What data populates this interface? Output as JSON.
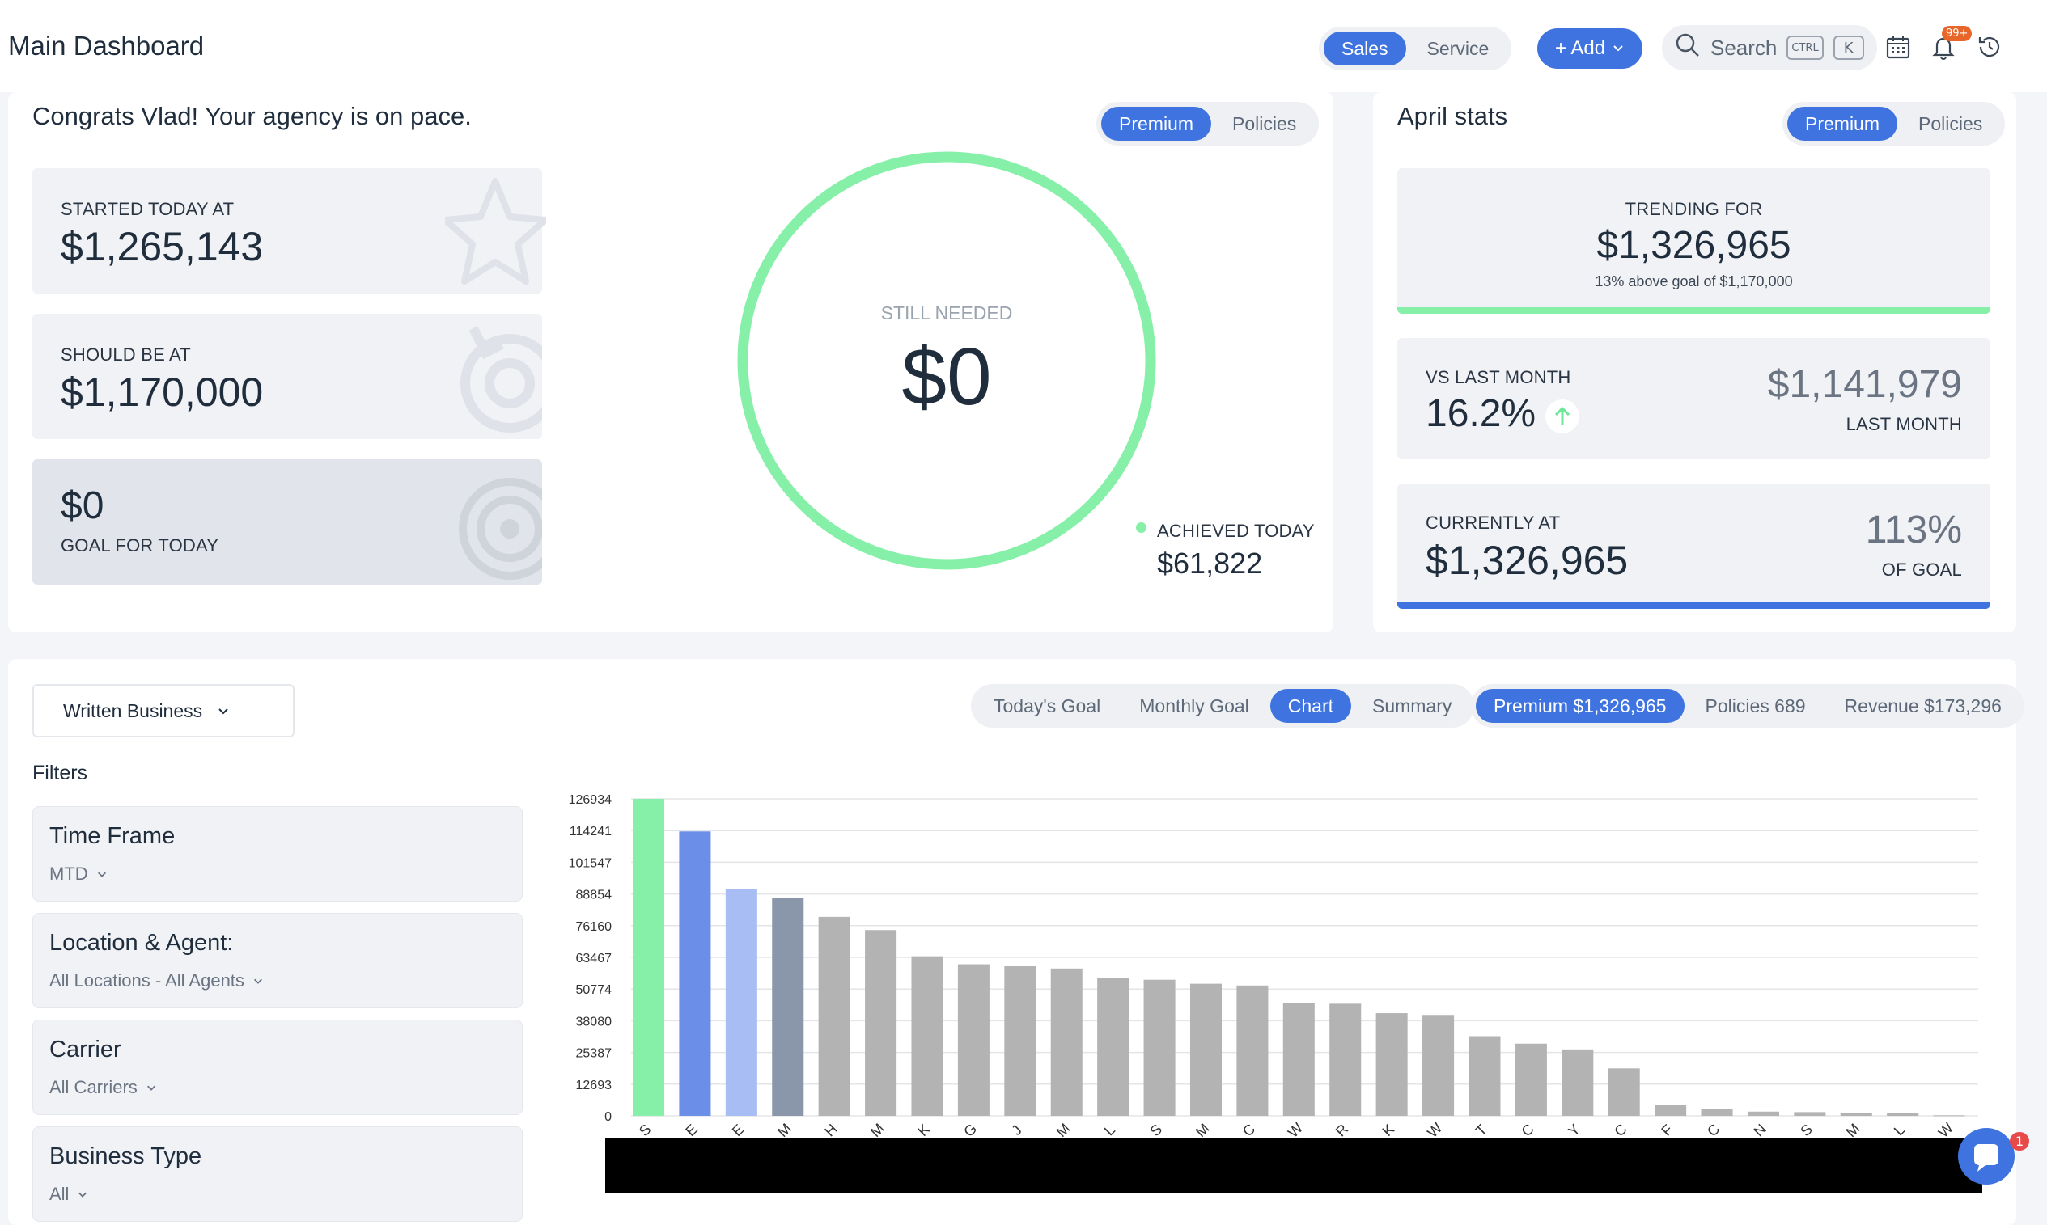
{
  "header": {
    "title": "Main Dashboard",
    "mode_tabs": [
      "Sales",
      "Service"
    ],
    "active_mode": "Sales",
    "add_label": "+ Add",
    "search_label": "Search",
    "kbd_ctrl": "CTRL",
    "kbd_k": "K",
    "notif_count": "99+"
  },
  "pace": {
    "headline": "Congrats Vlad! Your agency is on pace.",
    "toggle": [
      "Premium",
      "Policies"
    ],
    "started_label": "STARTED TODAY AT",
    "started_value": "$1,265,143",
    "should_label": "SHOULD BE AT",
    "should_value": "$1,170,000",
    "goal_value": "$0",
    "goal_label": "GOAL FOR TODAY",
    "still_needed_label": "STILL NEEDED",
    "still_needed_value": "$0",
    "achieved_label": "ACHIEVED TODAY",
    "achieved_value": "$61,822"
  },
  "april": {
    "title": "April stats",
    "toggle": [
      "Premium",
      "Policies"
    ],
    "trending_label": "TRENDING FOR",
    "trending_value": "$1,326,965",
    "trending_note": "13% above goal of $1,170,000",
    "vs_label": "VS LAST MONTH",
    "vs_value": "16.2%",
    "last_month_value": "$1,141,979",
    "last_month_label": "LAST MONTH",
    "current_label": "CURRENTLY AT",
    "current_value": "$1,326,965",
    "pct_value": "113%",
    "pct_label": "OF GOAL"
  },
  "business": {
    "dropdown_label": "Written Business",
    "view_tabs": [
      "Today's Goal",
      "Monthly Goal",
      "Chart",
      "Summary"
    ],
    "active_view": "Chart",
    "metric_tabs": [
      "Premium $1,326,965",
      "Policies 689",
      "Revenue $173,296"
    ],
    "filters_heading": "Filters",
    "filters": [
      {
        "title": "Time Frame",
        "value": "MTD"
      },
      {
        "title": "Location & Agent:",
        "value": "All Locations - All Agents"
      },
      {
        "title": "Carrier",
        "value": "All Carriers"
      },
      {
        "title": "Business Type",
        "value": "All"
      }
    ]
  },
  "chat": {
    "unread": "1"
  },
  "colors": {
    "accent": "#3f74e0",
    "green": "#86f0a8",
    "bar_blue": "#6b8ee8",
    "bar_lightblue": "#a8bdf4",
    "bar_slate": "#8a96aa",
    "bar_gray": "#b3b3b3"
  },
  "chart_data": {
    "type": "bar",
    "ylim": [
      0,
      126934
    ],
    "y_ticks": [
      0,
      12693,
      25387,
      38080,
      50774,
      63467,
      76160,
      88854,
      101547,
      114241,
      126934
    ],
    "categories": [
      "S",
      "E",
      "E",
      "M",
      "H",
      "M",
      "K",
      "G",
      "J",
      "M",
      "L",
      "S",
      "M",
      "C",
      "W",
      "R",
      "K",
      "W",
      "T",
      "C",
      "Y",
      "C",
      "F",
      "C",
      "N",
      "S",
      "M",
      "L",
      "W"
    ],
    "values": [
      126934,
      113900,
      90800,
      87200,
      79700,
      74400,
      63900,
      60700,
      59900,
      59000,
      55200,
      54500,
      52900,
      52200,
      45100,
      44900,
      41100,
      40400,
      31900,
      28900,
      26600,
      19000,
      4300,
      2600,
      1700,
      1500,
      1300,
      1100,
      200
    ],
    "bar_colors": [
      "#86f0a8",
      "#6b8ee8",
      "#a8bdf4",
      "#8a96aa",
      "#b3b3b3",
      "#b3b3b3",
      "#b3b3b3",
      "#b3b3b3",
      "#b3b3b3",
      "#b3b3b3",
      "#b3b3b3",
      "#b3b3b3",
      "#b3b3b3",
      "#b3b3b3",
      "#b3b3b3",
      "#b3b3b3",
      "#b3b3b3",
      "#b3b3b3",
      "#b3b3b3",
      "#b3b3b3",
      "#b3b3b3",
      "#b3b3b3",
      "#b3b3b3",
      "#b3b3b3",
      "#b3b3b3",
      "#b3b3b3",
      "#b3b3b3",
      "#b3b3b3",
      "#b3b3b3"
    ],
    "grid": true
  }
}
